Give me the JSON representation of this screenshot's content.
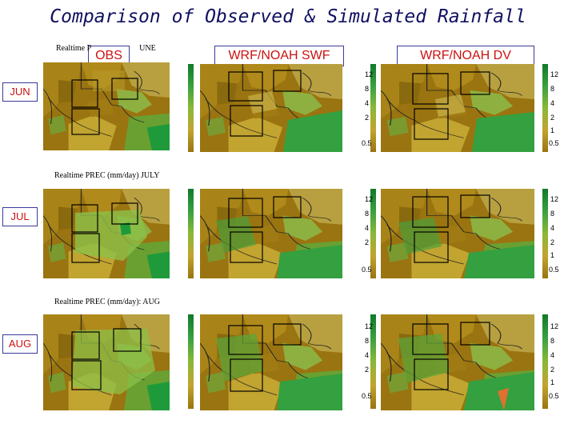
{
  "title": "Comparison of Observed & Simulated Rainfall",
  "columns": [
    "OBS",
    "WRF/NOAH SWF",
    "WRF/NOAH DV"
  ],
  "rows": [
    "JUN",
    "JUL",
    "AUG"
  ],
  "panel_headers": {
    "jun": "Realtime P",
    "jun_tail": "UNE",
    "jul": "Realtime PREC (mm/day) JULY",
    "aug": "Realtime PREC (mm/day): AUG"
  },
  "colorbar_ticks": [
    "12",
    "8",
    "4",
    "2",
    "1",
    "0.5"
  ],
  "colors": {
    "title": "#101060",
    "label_red": "#cc1111",
    "dry": "#9a7410",
    "moist": "#7aa632",
    "wet": "#1f9a3a",
    "very_wet": "#0f7a2a"
  }
}
